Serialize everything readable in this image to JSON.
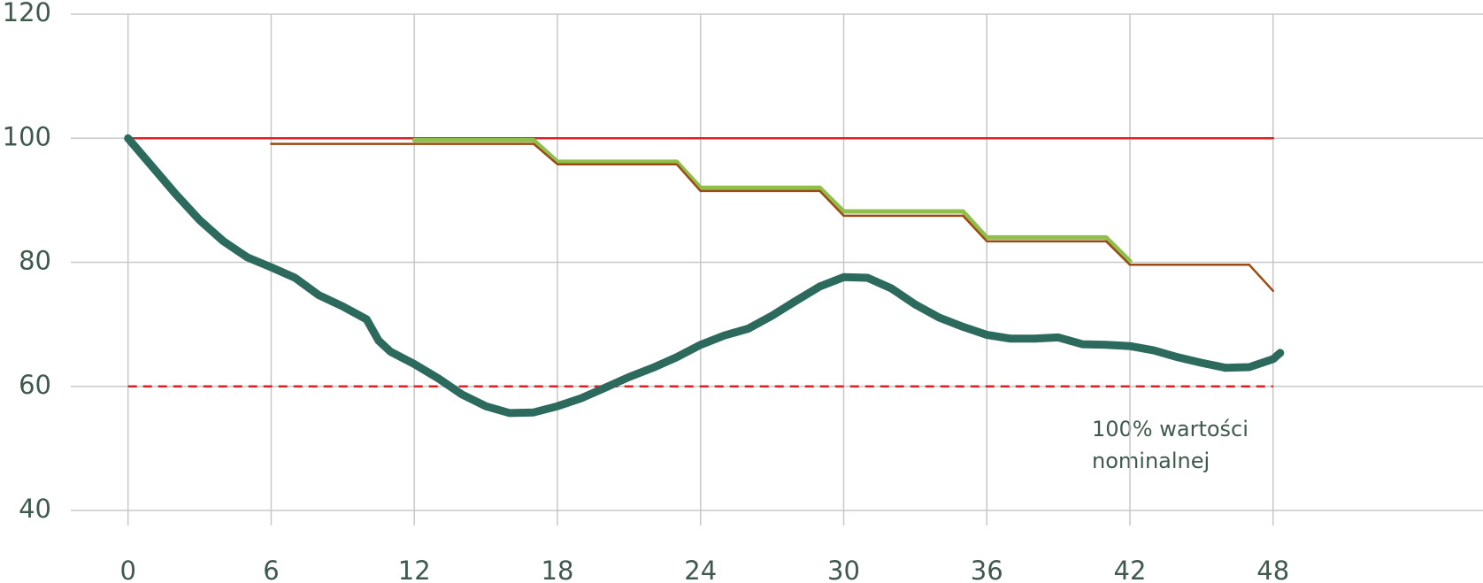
{
  "chart_data": {
    "type": "line",
    "xlim": [
      -2.4,
      56.8
    ],
    "ylim": [
      40,
      120
    ],
    "xticks": [
      0,
      6,
      12,
      18,
      24,
      30,
      36,
      42,
      48
    ],
    "yticks": [
      40,
      60,
      80,
      100,
      120
    ],
    "grid": true,
    "annotation": [
      "100% wartości",
      "nominalnej"
    ],
    "series": [
      {
        "color": "#e31e24",
        "width": 2.5,
        "dashed": false,
        "x": [
          0,
          48
        ],
        "values": [
          100,
          100
        ]
      },
      {
        "color": "#e31e24",
        "width": 2.5,
        "dashed": true,
        "x": [
          0,
          48
        ],
        "values": [
          60,
          60
        ]
      },
      {
        "color": "#8fbf4a",
        "width": 5,
        "dashed": false,
        "x": [
          12,
          17,
          18,
          23,
          24,
          29,
          30,
          35,
          36,
          41,
          42
        ],
        "values": [
          99.7,
          99.7,
          96.2,
          96.2,
          92,
          92,
          88.2,
          88.2,
          84,
          84,
          80.2
        ]
      },
      {
        "color": "#9a4a12",
        "width": 2.5,
        "dashed": false,
        "x": [
          6,
          17,
          18,
          23,
          24,
          29,
          30,
          35,
          36,
          41,
          42,
          47,
          48
        ],
        "values": [
          99.1,
          99.1,
          95.8,
          95.8,
          91.5,
          91.5,
          87.5,
          87.5,
          83.4,
          83.4,
          79.6,
          79.6,
          75.4
        ]
      },
      {
        "color": "#2d6a5e",
        "width": 9,
        "dashed": false,
        "x": [
          0,
          2,
          3,
          4,
          5,
          6,
          7,
          8,
          9,
          10,
          10.5,
          11,
          12,
          13,
          14,
          15,
          16,
          17,
          18,
          19,
          20,
          21,
          22,
          23,
          24,
          25,
          26,
          27,
          28,
          29,
          30,
          31,
          32,
          33,
          34,
          35,
          36,
          37,
          38,
          39,
          40,
          41,
          42,
          43,
          44,
          45,
          46,
          47,
          48,
          48.3
        ],
        "values": [
          100,
          91,
          86.8,
          83.4,
          80.8,
          79.2,
          77.5,
          74.7,
          72.9,
          70.8,
          67.4,
          65.6,
          63.6,
          61.3,
          58.7,
          56.8,
          55.7,
          55.8,
          56.8,
          58.1,
          59.8,
          61.5,
          63,
          64.7,
          66.7,
          68.2,
          69.3,
          71.4,
          73.8,
          76.1,
          77.6,
          77.5,
          75.8,
          73.2,
          71.1,
          69.6,
          68.3,
          67.7,
          67.7,
          67.9,
          66.8,
          66.7,
          66.5,
          65.8,
          64.7,
          63.8,
          63,
          63.1,
          64.4,
          65.4
        ]
      }
    ]
  }
}
